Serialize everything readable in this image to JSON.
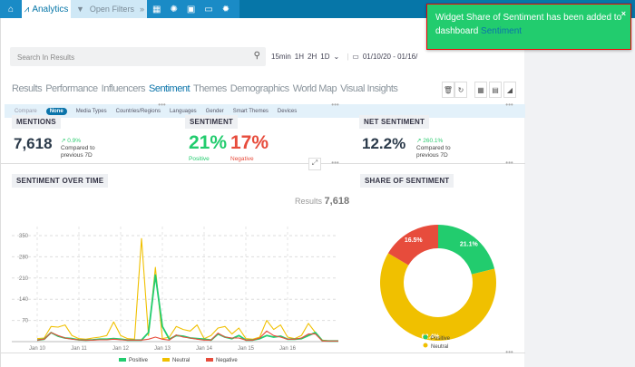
{
  "topbar": {
    "app": "Analytics",
    "filters": "Open Filters",
    "icons": [
      "home-icon",
      "dashboard-icon",
      "lightbulb-icon",
      "report-icon",
      "monitor-icon",
      "gear-icon"
    ]
  },
  "search": {
    "placeholder": "Search In Results"
  },
  "time": {
    "options": [
      "15min",
      "1H",
      "2H",
      "1D"
    ],
    "range": "01/10/20 - 01/16/"
  },
  "tabs": [
    "Results",
    "Performance",
    "Influencers",
    "Sentiment",
    "Themes",
    "Demographics",
    "World Map",
    "Visual Insights"
  ],
  "active_tab": "Sentiment",
  "compare": {
    "label": "Compare",
    "options": [
      "None",
      "Media Types",
      "Countries/Regions",
      "Languages",
      "Gender",
      "Smart Themes",
      "Devices"
    ],
    "selected": "None"
  },
  "mentions": {
    "title": "MENTIONS",
    "value": "7,618",
    "delta": "0.9%",
    "note1": "Compared to",
    "note2": "previous 7D"
  },
  "sentiment": {
    "title": "SENTIMENT",
    "positive": "21%",
    "positive_label": "Positive",
    "negative": "17%",
    "negative_label": "Negative"
  },
  "net": {
    "title": "NET SENTIMENT",
    "value": "12.2%",
    "delta": "260.1%",
    "note1": "Compared to",
    "note2": "previous 7D"
  },
  "over_time": {
    "title": "SENTIMENT OVER TIME",
    "results_label": "Results",
    "results_value": "7,618"
  },
  "share": {
    "title": "SHARE OF SENTIMENT"
  },
  "toast": {
    "text": "Widget Share of Sentiment has been added to dashboard",
    "link": "Sentiment",
    "close": "×"
  },
  "colors": {
    "positive": "#22cc6e",
    "neutral": "#f0c000",
    "negative": "#e74c3c",
    "brand": "#0676a8"
  },
  "chart_data": [
    {
      "type": "line",
      "title": "SENTIMENT OVER TIME",
      "ylim": [
        0,
        350
      ],
      "yticks": [
        70,
        140,
        210,
        280,
        350
      ],
      "xticks": [
        "Jan 10",
        "Jan 11",
        "Jan 12",
        "Jan 13",
        "Jan 14",
        "Jan 15",
        "Jan 16"
      ],
      "x_start": "2020-01-10T00:00",
      "x_step_hours": 4,
      "grid": true,
      "legend": "bottom",
      "series": [
        {
          "name": "Positive",
          "values": [
            5,
            8,
            30,
            18,
            12,
            10,
            6,
            5,
            6,
            8,
            8,
            10,
            8,
            5,
            5,
            5,
            30,
            220,
            50,
            8,
            20,
            18,
            12,
            10,
            8,
            5,
            25,
            15,
            10,
            20,
            5,
            5,
            10,
            20,
            15,
            18,
            8,
            8,
            10,
            20,
            30,
            3,
            2
          ]
        },
        {
          "name": "Neutral",
          "values": [
            10,
            12,
            50,
            48,
            55,
            20,
            10,
            8,
            12,
            15,
            20,
            65,
            20,
            10,
            8,
            340,
            20,
            245,
            10,
            15,
            50,
            40,
            35,
            55,
            10,
            20,
            45,
            50,
            25,
            45,
            10,
            8,
            15,
            70,
            40,
            55,
            15,
            10,
            20,
            60,
            30,
            5,
            2
          ]
        },
        {
          "name": "Negative",
          "values": [
            5,
            8,
            30,
            20,
            12,
            8,
            6,
            5,
            5,
            6,
            6,
            8,
            6,
            5,
            5,
            5,
            8,
            15,
            8,
            5,
            22,
            15,
            12,
            8,
            5,
            5,
            28,
            15,
            12,
            12,
            5,
            5,
            12,
            35,
            20,
            15,
            8,
            8,
            12,
            25,
            25,
            2,
            2
          ]
        }
      ]
    },
    {
      "type": "pie",
      "title": "SHARE OF SENTIMENT",
      "categories": [
        "Positive",
        "Neutral",
        "Negative"
      ],
      "values": [
        21.1,
        62.4,
        16.5
      ],
      "labels": [
        "21.1%",
        "62.4%",
        "16.5%"
      ],
      "legend": "bottom"
    }
  ]
}
